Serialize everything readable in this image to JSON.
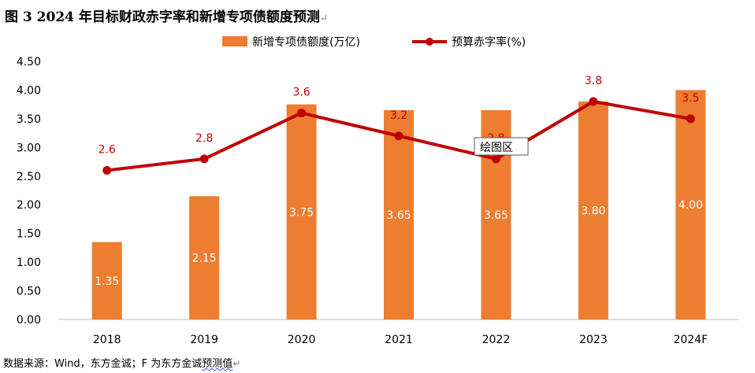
{
  "figure": {
    "title": "图 3   2024 年目标财政赤字率和新增专项债额度预测",
    "title_mark": "↵"
  },
  "source": {
    "prefix": "数据来源：Wind，东方金诚；F 为东方金诚",
    "underlined": "预测值",
    "mark": "↵"
  },
  "tooltip": {
    "text": "绘图区"
  },
  "colors": {
    "bar": "#ED7D31",
    "line": "#C00000",
    "bar_label": "#ffffff",
    "line_label": "#C00000"
  },
  "chart_data": {
    "type": "bar",
    "categories": [
      "2018",
      "2019",
      "2020",
      "2021",
      "2022",
      "2023",
      "2024F"
    ],
    "ylim": [
      0,
      4.5
    ],
    "yticks": [
      "0.00",
      "0.50",
      "1.00",
      "1.50",
      "2.00",
      "2.50",
      "3.00",
      "3.50",
      "4.00",
      "4.50"
    ],
    "grid": false,
    "legend": "top",
    "series": [
      {
        "name": "新增专项债额度(万亿)",
        "type": "bar",
        "values": [
          1.35,
          2.15,
          3.75,
          3.65,
          3.65,
          3.8,
          4.0
        ],
        "labels": [
          "1.35",
          "2.15",
          "3.75",
          "3.65",
          "3.65",
          "3.80",
          "4.00"
        ]
      },
      {
        "name": "预算赤字率(%)",
        "type": "line",
        "values": [
          2.6,
          2.8,
          3.6,
          3.2,
          2.8,
          3.8,
          3.5
        ],
        "labels": [
          "2.6",
          "2.8",
          "3.6",
          "3.2",
          "2.8",
          "3.8",
          "3.5"
        ]
      }
    ]
  }
}
